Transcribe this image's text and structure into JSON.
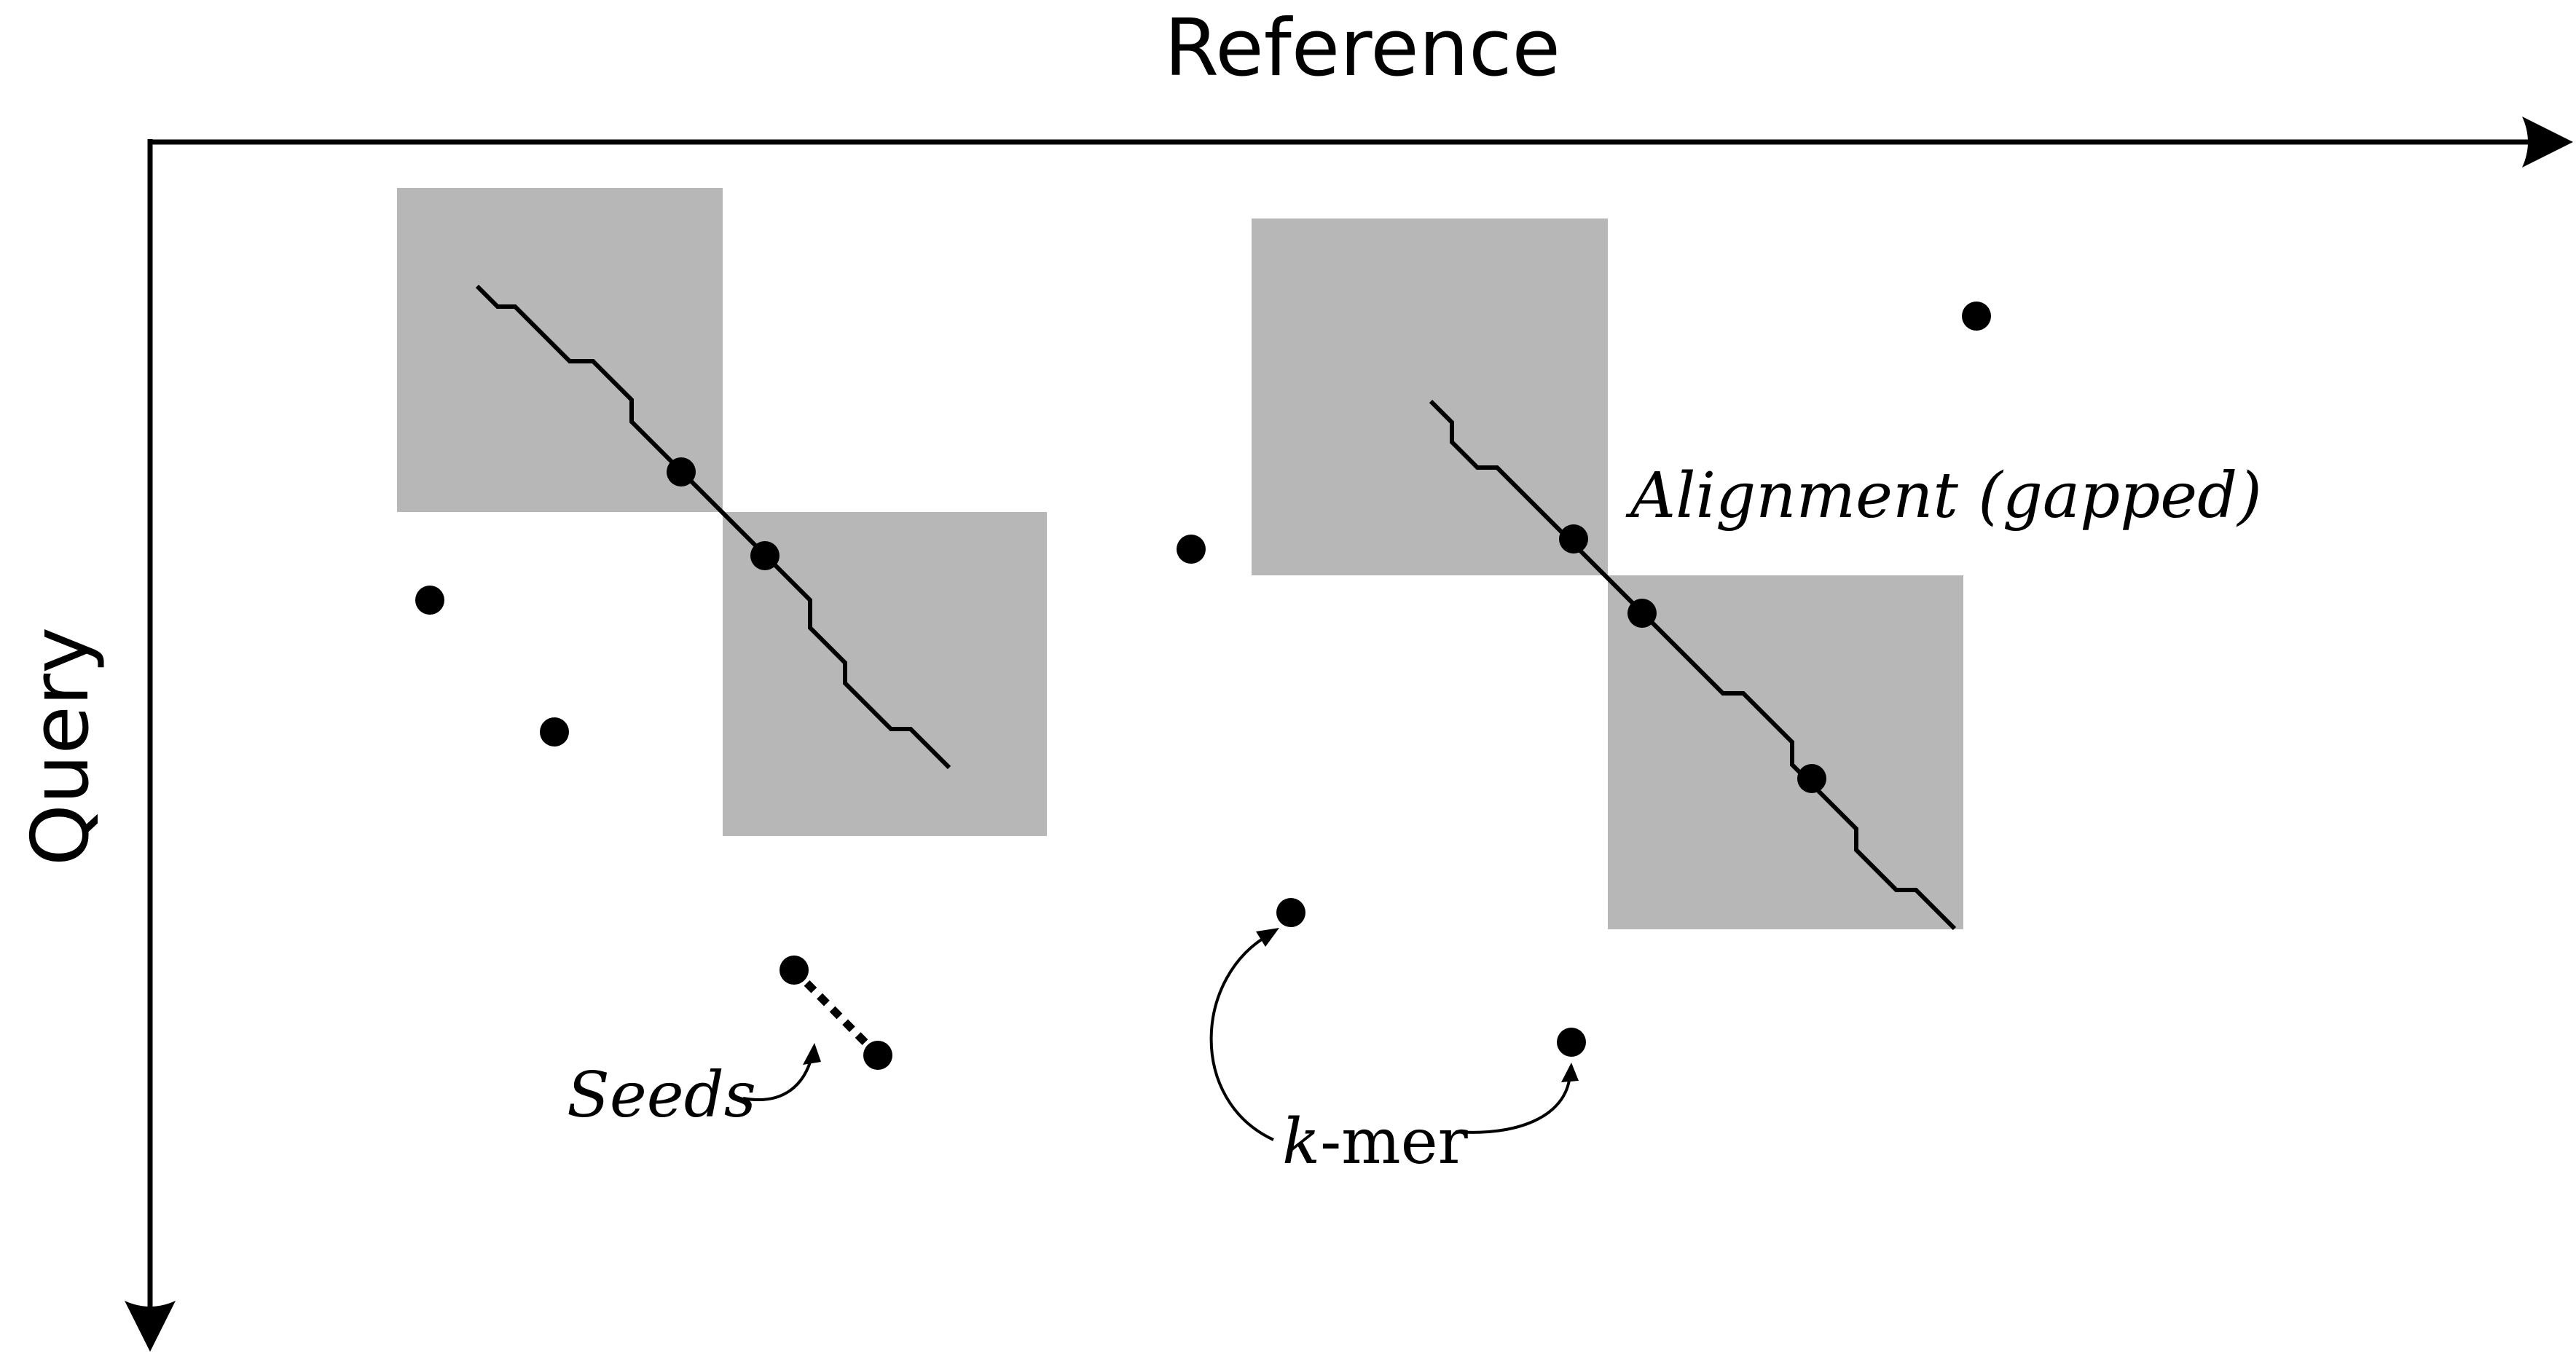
{
  "axes": {
    "x_label": "Reference",
    "y_label": "Query"
  },
  "labels": {
    "alignment_prefix": "Alignment",
    "alignment_suffix": "(gapped)",
    "seeds": "Seeds",
    "kmer_var": "k",
    "kmer_rest": "-mer"
  },
  "colors": {
    "ink": "#000000",
    "box_fill": "#b7b7b7",
    "background": "#ffffff"
  }
}
